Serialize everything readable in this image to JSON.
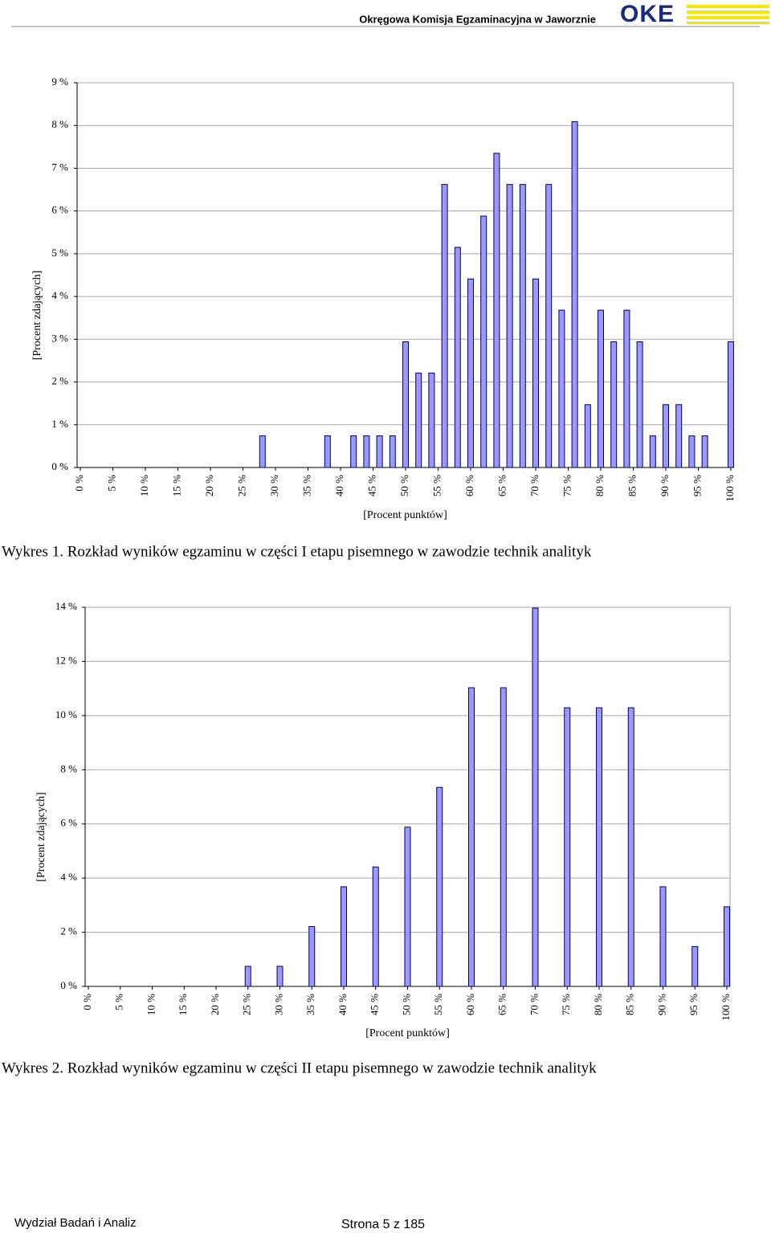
{
  "header": {
    "title": "Okręgowa Komisja Egzaminacyjna w Jaworznie",
    "logo": "OKE"
  },
  "chart_data": [
    {
      "type": "bar",
      "caption": "Wykres 1. Rozkład wyników egzaminu w części I etapu pisemnego w zawodzie technik analityk",
      "xlabel": "[Procent punktów]",
      "ylabel": "[Procent zdających]",
      "x": [
        28,
        38,
        42,
        44,
        46,
        48,
        50,
        52,
        54,
        56,
        58,
        60,
        62,
        64,
        66,
        68,
        70,
        72,
        74,
        76,
        78,
        80,
        82,
        84,
        86,
        88,
        90,
        92,
        94,
        96,
        100
      ],
      "values": [
        0.74,
        0.74,
        0.74,
        0.74,
        0.74,
        0.74,
        2.94,
        2.21,
        2.21,
        6.62,
        5.15,
        4.41,
        5.88,
        7.35,
        6.62,
        6.62,
        4.41,
        6.62,
        3.68,
        8.09,
        1.47,
        3.68,
        2.94,
        3.68,
        2.94,
        0.74,
        1.47,
        1.47,
        0.74,
        0.74,
        2.94
      ],
      "color": "#9999ff",
      "xlim": [
        0,
        100
      ],
      "xticks": [
        {
          "value": 0,
          "label": "0 %"
        },
        {
          "value": 5,
          "label": "5 %"
        },
        {
          "value": 10,
          "label": "10 %"
        },
        {
          "value": 15,
          "label": "15 %"
        },
        {
          "value": 20,
          "label": "20 %"
        },
        {
          "value": 25,
          "label": "25 %"
        },
        {
          "value": 30,
          "label": "30 %"
        },
        {
          "value": 35,
          "label": "35 %"
        },
        {
          "value": 40,
          "label": "40 %"
        },
        {
          "value": 45,
          "label": "45 %"
        },
        {
          "value": 50,
          "label": "50 %"
        },
        {
          "value": 55,
          "label": "55 %"
        },
        {
          "value": 60,
          "label": "60 %"
        },
        {
          "value": 65,
          "label": "65 %"
        },
        {
          "value": 70,
          "label": "70 %"
        },
        {
          "value": 75,
          "label": "75 %"
        },
        {
          "value": 80,
          "label": "80 %"
        },
        {
          "value": 85,
          "label": "85 %"
        },
        {
          "value": 90,
          "label": "90 %"
        },
        {
          "value": 95,
          "label": "95 %"
        },
        {
          "value": 100,
          "label": "100 %"
        }
      ],
      "ylim": [
        0,
        9
      ],
      "yticks": [
        {
          "value": 0,
          "label": "0 %"
        },
        {
          "value": 1,
          "label": "1 %"
        },
        {
          "value": 2,
          "label": "2 %"
        },
        {
          "value": 3,
          "label": "3 %"
        },
        {
          "value": 4,
          "label": "4 %"
        },
        {
          "value": 5,
          "label": "5 %"
        },
        {
          "value": 6,
          "label": "6 %"
        },
        {
          "value": 7,
          "label": "7 %"
        },
        {
          "value": 8,
          "label": "8 %"
        },
        {
          "value": 9,
          "label": "9 %"
        }
      ],
      "grid": true
    },
    {
      "type": "bar",
      "caption": "Wykres 2. Rozkład wyników egzaminu w części II etapu pisemnego w zawodzie technik analityk",
      "xlabel": "[Procent punktów]",
      "ylabel": "[Procent zdających]",
      "x": [
        25,
        30,
        35,
        40,
        45,
        50,
        55,
        60,
        65,
        70,
        75,
        80,
        85,
        90,
        95,
        100
      ],
      "values": [
        0.74,
        0.74,
        2.21,
        3.68,
        4.41,
        5.88,
        7.35,
        11.03,
        11.03,
        13.97,
        10.29,
        10.29,
        10.29,
        3.68,
        1.47,
        2.94
      ],
      "color": "#9999ff",
      "xlim": [
        0,
        100
      ],
      "xticks": [
        {
          "value": 0,
          "label": "0 %"
        },
        {
          "value": 5,
          "label": "5 %"
        },
        {
          "value": 10,
          "label": "10 %"
        },
        {
          "value": 15,
          "label": "15 %"
        },
        {
          "value": 20,
          "label": "20 %"
        },
        {
          "value": 25,
          "label": "25 %"
        },
        {
          "value": 30,
          "label": "30 %"
        },
        {
          "value": 35,
          "label": "35 %"
        },
        {
          "value": 40,
          "label": "40 %"
        },
        {
          "value": 45,
          "label": "45 %"
        },
        {
          "value": 50,
          "label": "50 %"
        },
        {
          "value": 55,
          "label": "55 %"
        },
        {
          "value": 60,
          "label": "60 %"
        },
        {
          "value": 65,
          "label": "65 %"
        },
        {
          "value": 70,
          "label": "70 %"
        },
        {
          "value": 75,
          "label": "75 %"
        },
        {
          "value": 80,
          "label": "80 %"
        },
        {
          "value": 85,
          "label": "85 %"
        },
        {
          "value": 90,
          "label": "90 %"
        },
        {
          "value": 95,
          "label": "95 %"
        },
        {
          "value": 100,
          "label": "100 %"
        }
      ],
      "ylim": [
        0,
        14
      ],
      "yticks": [
        {
          "value": 0,
          "label": "0 %"
        },
        {
          "value": 2,
          "label": "2 %"
        },
        {
          "value": 4,
          "label": "4 %"
        },
        {
          "value": 6,
          "label": "6 %"
        },
        {
          "value": 8,
          "label": "8 %"
        },
        {
          "value": 10,
          "label": "10 %"
        },
        {
          "value": 12,
          "label": "12 %"
        },
        {
          "value": 14,
          "label": "14 %"
        }
      ],
      "grid": true
    }
  ],
  "footer": {
    "left": "Wydział Badań i Analiz",
    "right": "Strona 5 z 185"
  }
}
